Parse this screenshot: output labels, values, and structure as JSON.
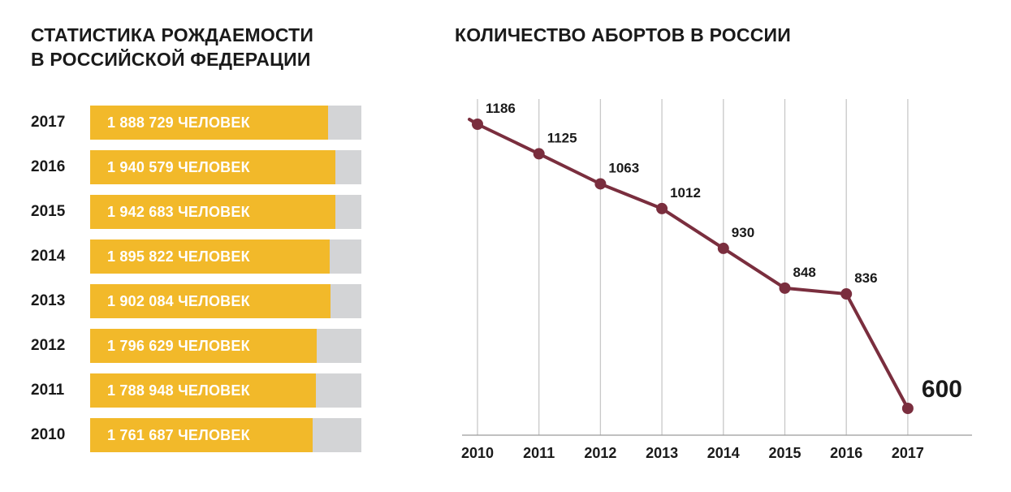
{
  "colors": {
    "bar_fill": "#f2b92a",
    "bar_track": "#d3d4d6",
    "line": "#7a2e3e",
    "grid": "#c8c8c8",
    "text": "#1a1a1a"
  },
  "chart_data": [
    {
      "type": "bar",
      "orientation": "horizontal",
      "title": "СТАТИСТИКА РОЖДАЕМОСТИ В РОССИЙСКОЙ ФЕДЕРАЦИИ",
      "title_lines": [
        "СТАТИСТИКА РОЖДАЕМОСТИ",
        "В РОССИЙСКОЙ ФЕДЕРАЦИИ"
      ],
      "xlim": [
        0,
        2150000
      ],
      "categories": [
        "2017",
        "2016",
        "2015",
        "2014",
        "2013",
        "2012",
        "2011",
        "2010"
      ],
      "values": [
        1888729,
        1940579,
        1942683,
        1895822,
        1902084,
        1796629,
        1788948,
        1761687
      ],
      "labels": [
        "1 888 729 ЧЕЛОВЕК",
        "1 940 579 ЧЕЛОВЕК",
        "1 942 683 ЧЕЛОВЕК",
        "1 895 822 ЧЕЛОВЕК",
        "1 902 084 ЧЕЛОВЕК",
        "1 796 629 ЧЕЛОВЕК",
        "1 788 948 ЧЕЛОВЕК",
        "1 761 687 ЧЕЛОВЕК"
      ]
    },
    {
      "type": "line",
      "title": "КОЛИЧЕСТВО АБОРТОВ В РОССИИ",
      "x": [
        "2010",
        "2011",
        "2012",
        "2013",
        "2014",
        "2015",
        "2016",
        "2017"
      ],
      "values": [
        1186,
        1125,
        1063,
        1012,
        930,
        848,
        836,
        600
      ],
      "labels": [
        "1186",
        "1125",
        "1063",
        "1012",
        "930",
        "848",
        "836",
        "600"
      ],
      "ylim": [
        600,
        1186
      ],
      "grid": "vertical"
    }
  ]
}
